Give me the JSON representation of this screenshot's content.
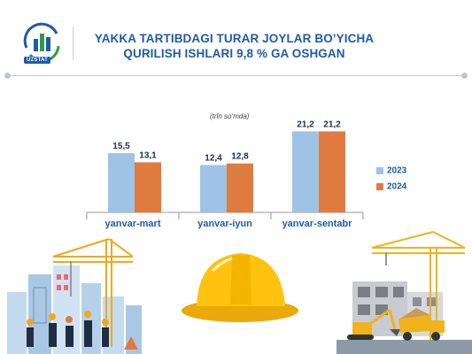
{
  "logo": {
    "label": "UZSTAT"
  },
  "headline": {
    "line1": "YAKKA TARTIBDAGI TURAR JOYLAR BO’YICHA",
    "line2": "QURILISH ISHLARI 9,8 % GA OSHGAN"
  },
  "chart_data": {
    "type": "bar",
    "unit_label": "(trln so‘mda)",
    "categories": [
      "yanvar-mart",
      "yanvar-iyun",
      "yanvar-sentabr"
    ],
    "series": [
      {
        "name": "2023",
        "values": [
          15.5,
          12.4,
          21.2
        ],
        "labels": [
          "15,5",
          "12,4",
          "21,2"
        ],
        "color": "#9fc3e5"
      },
      {
        "name": "2024",
        "values": [
          13.1,
          12.8,
          21.2
        ],
        "labels": [
          "13,1",
          "12,8",
          "21,2"
        ],
        "color": "#e07b3f"
      }
    ],
    "ylim": [
      0,
      22
    ],
    "legend_position": "right",
    "grid": false
  },
  "colors": {
    "title": "#1e5ba8",
    "category_label": "#1e5ba8",
    "helmet": "#ffc20e"
  },
  "icons": [
    "uzstat-logo-icon",
    "hard-hat-icon",
    "construction-crane-icon",
    "excavator-icon",
    "dump-truck-icon"
  ]
}
